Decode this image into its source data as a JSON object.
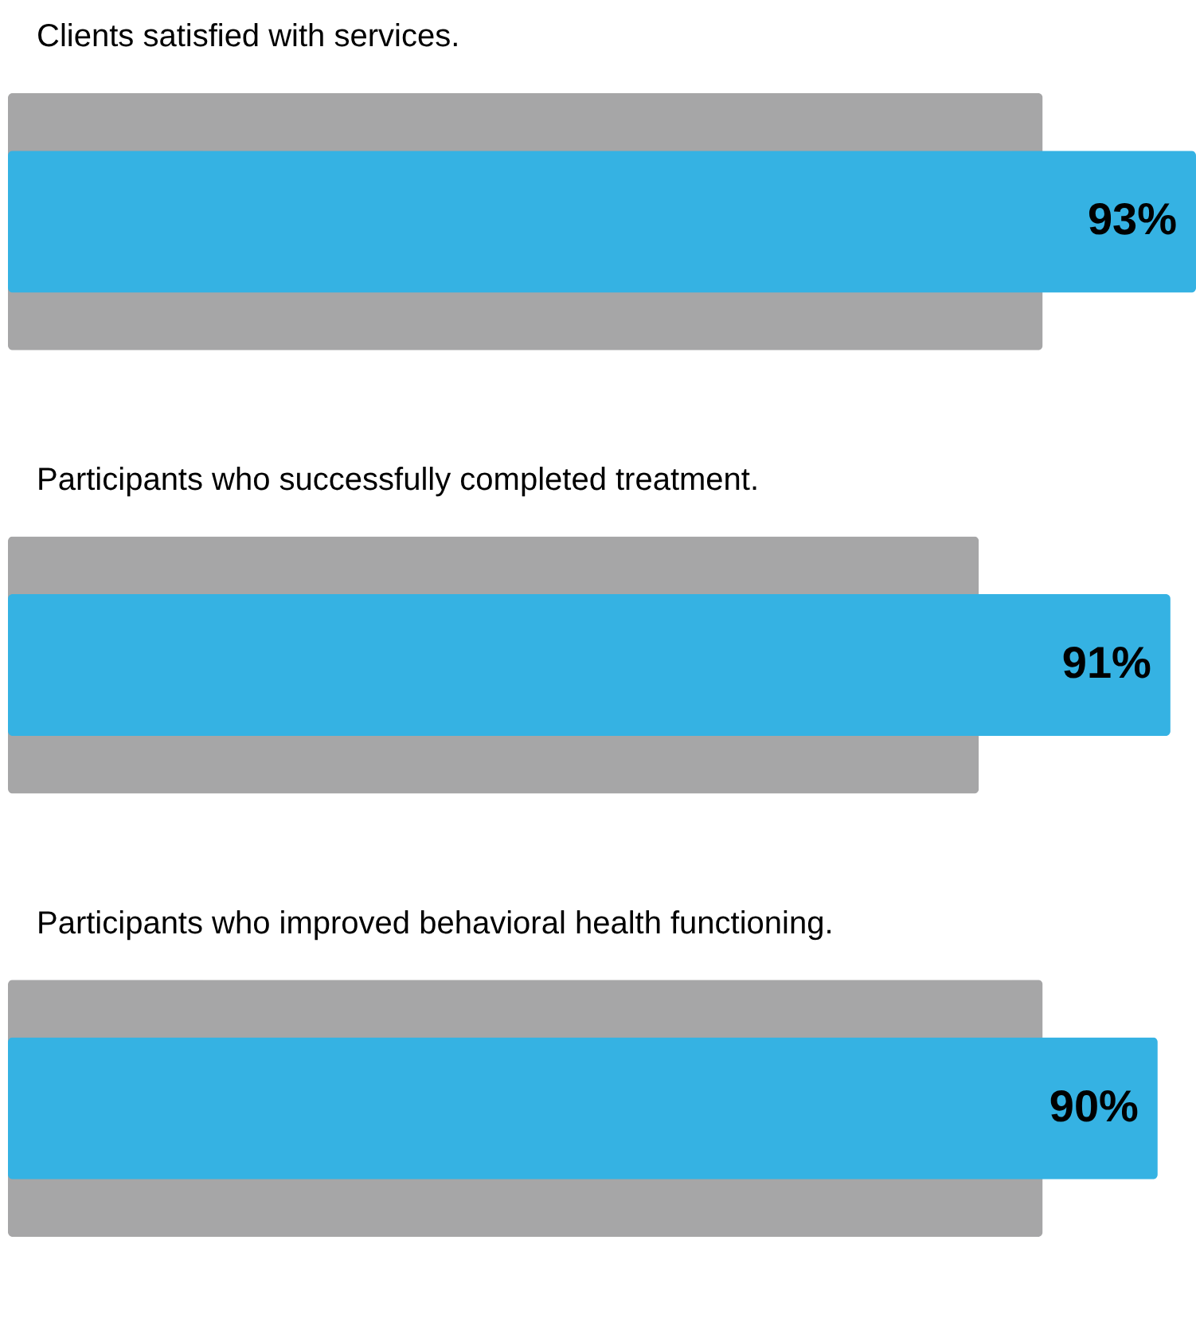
{
  "chart_data": {
    "type": "bar",
    "orientation": "horizontal",
    "categories": [
      "Clients satisfied with services.",
      "Participants who successfully completed  treatment.",
      "Participants who improved behavioral health  functioning."
    ],
    "series": [
      {
        "color": "#a6a6a7",
        "values": [
          81,
          76,
          81
        ]
      },
      {
        "color": "#35b2e3",
        "values": [
          93,
          91,
          90
        ],
        "value_labels": [
          "93%",
          "91%",
          "90%"
        ]
      }
    ]
  }
}
